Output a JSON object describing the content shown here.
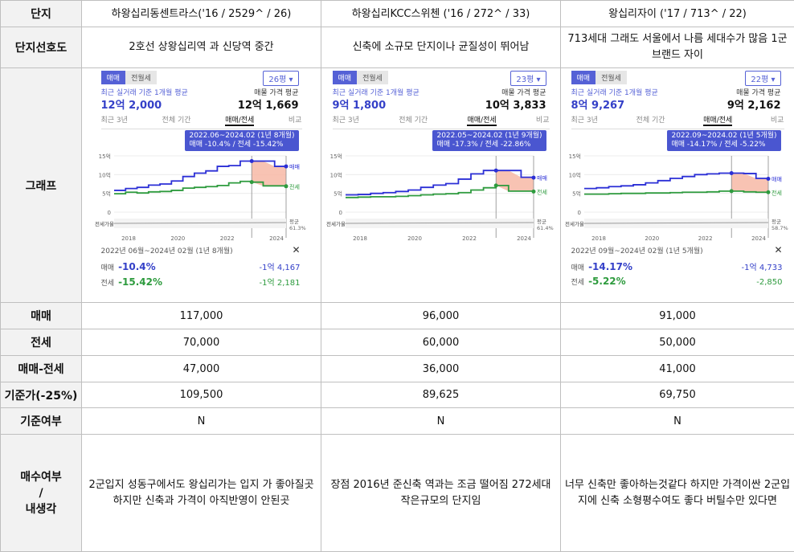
{
  "labels": {
    "danji": "단지",
    "preference": "단지선호도",
    "graph": "그래프",
    "maemae": "매매",
    "jeonse": "전세",
    "gap": "매매-전세",
    "base_price": "기준가(-25%)",
    "base_flag": "기준여부",
    "decision_1": "매수여부",
    "decision_2": "/",
    "decision_3": "내생각"
  },
  "complexes": [
    {
      "name": "하왕십리동센트라스('16 / 2529^ / 26)",
      "preference": "2호선 상왕십리역 과 신당역 중간",
      "maemae": "117,000",
      "jeonse": "70,000",
      "gap": "47,000",
      "base_price": "109,500",
      "base_flag": "N",
      "opinion": "2군입지 성동구에서도 왕십리가는 입지 가 좋아질곳 하지만 신축과 가격이 아직반영이 안된곳",
      "graph": {
        "tab_trade": "매매",
        "tab_lease": "전월세",
        "size": "26평 ▾",
        "recent_caption": "최근 실거래 기준 1개월 평균",
        "recent_value": "12억 2,000",
        "listing_caption": "매물 가격 평균",
        "listing_value": "12억 1,669",
        "nav": [
          "최근 3년",
          "전체 기간",
          "매매/전세",
          "비교"
        ],
        "tooltip_1": "2022.06~2024.02 (1년 8개월)",
        "tooltip_2": "매매 -10.4% / 전세 -15.42%",
        "y_ticks": [
          "15억",
          "10억",
          "5억",
          "0"
        ],
        "x_ticks": [
          "2018",
          "2020",
          "2022",
          "2024"
        ],
        "legend_trade": "매매",
        "legend_lease": "전세",
        "ratio_label": "전세가율",
        "avg_label": "평균",
        "avg_value": "61.3%",
        "period": "2022년 06월~2024년 02월 (1년 8개월)",
        "close": "✕",
        "change_trade": "-10.4%",
        "change_lease": "-15.42%",
        "amount_trade": "-1억 4,167",
        "amount_lease": "-1억 2,181",
        "trade_series": [
          5.8,
          6.3,
          6.6,
          7.2,
          7.5,
          8.3,
          9.5,
          10.4,
          11.0,
          12.2,
          12.4,
          13.6,
          13.6,
          13.6,
          12.2,
          12.2
        ],
        "lease_series": [
          4.9,
          5.3,
          5.1,
          5.4,
          5.5,
          5.8,
          6.4,
          6.6,
          6.8,
          7.1,
          7.8,
          8.2,
          8.0,
          7.0,
          7.0,
          6.9
        ],
        "highlight": [
          12,
          15
        ]
      }
    },
    {
      "name": "하왕십리KCC스위첸 ('16 / 272^ / 33)",
      "preference": "신축에  소규모 단지이나 균질성이 뛰어남",
      "maemae": "96,000",
      "jeonse": "60,000",
      "gap": "36,000",
      "base_price": "89,625",
      "base_flag": "N",
      "opinion": "장점 2016년 준신축 역과는 조금 떨어짐 272세대 작은규모의 단지임",
      "graph": {
        "tab_trade": "매매",
        "tab_lease": "전월세",
        "size": "23평 ▾",
        "recent_caption": "최근 실거래 기준 1개월 평균",
        "recent_value": "9억 1,800",
        "listing_caption": "매물 가격 평균",
        "listing_value": "10억 3,833",
        "nav": [
          "최근 3년",
          "전체 기간",
          "매매/전세",
          "비교"
        ],
        "tooltip_1": "2022.05~2024.02 (1년 9개월)",
        "tooltip_2": "매매 -17.3% / 전세 -22.86%",
        "y_ticks": [
          "15억",
          "10억",
          "5억",
          "0"
        ],
        "x_ticks": [
          "2018",
          "2020",
          "2022",
          "2024"
        ],
        "legend_trade": "매매",
        "legend_lease": "전세",
        "ratio_label": "전세가율",
        "avg_label": "평균",
        "avg_value": "61.4%",
        "period": "",
        "close": "",
        "change_trade": "",
        "change_lease": "",
        "amount_trade": "",
        "amount_lease": "",
        "trade_series": [
          4.6,
          4.7,
          5.0,
          5.2,
          5.5,
          5.9,
          6.6,
          7.2,
          7.6,
          8.8,
          10.2,
          11.1,
          11.1,
          11.1,
          9.3,
          9.2
        ],
        "lease_series": [
          3.9,
          4.0,
          4.1,
          4.1,
          4.2,
          4.4,
          4.6,
          4.8,
          4.9,
          5.2,
          5.9,
          6.5,
          7.1,
          5.6,
          5.6,
          5.5
        ],
        "highlight": [
          12,
          15
        ]
      }
    },
    {
      "name": "왕십리자이 ('17 / 713^ / 22)",
      "preference": "713세대 그래도 서울에서 나름 세대수가 많음 1군브랜드 자이",
      "maemae": "91,000",
      "jeonse": "50,000",
      "gap": "41,000",
      "base_price": "69,750",
      "base_flag": "N",
      "opinion": "너무 신축만 좋아하는것같다 하지만 가격이싼 2군입지에 신축 소형평수여도 좋다 버틸수만 있다면",
      "graph": {
        "tab_trade": "매매",
        "tab_lease": "전월세",
        "size": "22평 ▾",
        "recent_caption": "최근 실거래 기준 1개월 평균",
        "recent_value": "8억 9,267",
        "listing_caption": "매물 가격 평균",
        "listing_value": "9억 2,162",
        "nav": [
          "최근 3년",
          "전체 기간",
          "매매/전세",
          "비교"
        ],
        "tooltip_1": "2022.09~2024.02 (1년 5개월)",
        "tooltip_2": "매매 -14.17% / 전세 -5.22%",
        "y_ticks": [
          "15억",
          "10억",
          "5억",
          "0"
        ],
        "x_ticks": [
          "2018",
          "2020",
          "2022",
          "2024"
        ],
        "legend_trade": "매매",
        "legend_lease": "전세",
        "ratio_label": "전세가율",
        "avg_label": "평균",
        "avg_value": "58.7%",
        "period": "2022년 09월~2024년 02월 (1년 5개월)",
        "close": "✕",
        "change_trade": "-14.17%",
        "change_lease": "-5.22%",
        "amount_trade": "-1억 4,733",
        "amount_lease": "-2,850",
        "trade_series": [
          6.3,
          6.5,
          6.8,
          7.0,
          7.3,
          7.8,
          8.4,
          9.0,
          9.5,
          10.0,
          10.2,
          10.4,
          10.4,
          10.3,
          9.0,
          8.9
        ],
        "lease_series": [
          4.8,
          4.8,
          4.9,
          5.0,
          5.0,
          5.1,
          5.1,
          5.2,
          5.3,
          5.3,
          5.4,
          5.6,
          5.6,
          5.4,
          5.3,
          5.3
        ],
        "highlight": [
          12,
          15
        ]
      }
    }
  ]
}
